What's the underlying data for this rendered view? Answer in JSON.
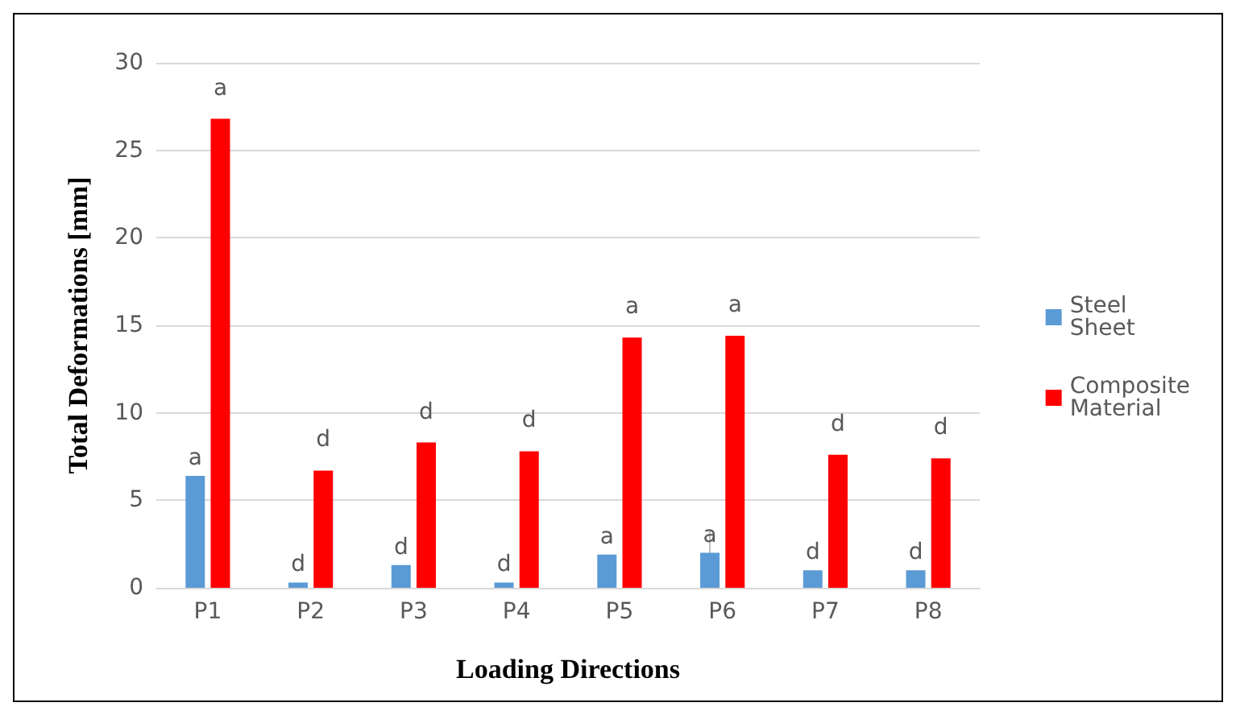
{
  "chart_data": {
    "type": "bar",
    "xlabel": "Loading Directions",
    "ylabel": "Total Deformations [mm]",
    "categories": [
      "P1",
      "P2",
      "P3",
      "P4",
      "P5",
      "P6",
      "P7",
      "P8"
    ],
    "series": [
      {
        "name": "Steel Sheet",
        "color": "#5b9bd5",
        "values": [
          6.4,
          0.3,
          1.3,
          0.3,
          1.9,
          2.0,
          1.0,
          1.0
        ],
        "value_labels": [
          "a",
          "d",
          "d",
          "d",
          "a",
          "a",
          "d",
          "d"
        ],
        "errors": [
          null,
          null,
          null,
          null,
          null,
          1.3,
          null,
          null
        ]
      },
      {
        "name": "Composite Material",
        "color": "#ff0000",
        "values": [
          26.8,
          6.7,
          8.3,
          7.8,
          14.3,
          14.4,
          7.6,
          7.4
        ],
        "value_labels": [
          "a",
          "d",
          "d",
          "d",
          "a",
          "a",
          "d",
          "d"
        ]
      }
    ],
    "ylim": [
      0,
      30
    ],
    "yticks": [
      0,
      5,
      10,
      15,
      20,
      25,
      30
    ],
    "grid": "y",
    "legend": "right"
  }
}
